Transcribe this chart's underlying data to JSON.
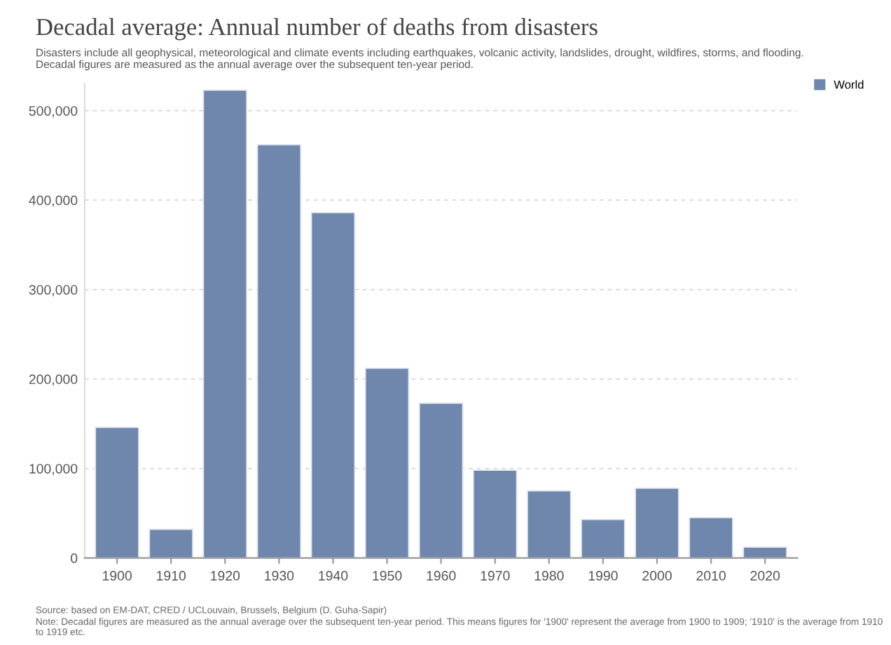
{
  "chart_data": {
    "type": "bar",
    "title": "Decadal average: Annual number of deaths from disasters",
    "subtitle": "Disasters include all geophysical, meteorological and climate events including earthquakes, volcanic activity, landslides, drought, wildfires, storms, and flooding.\nDecadal figures are measured as the annual average over the subsequent ten-year period.",
    "categories": [
      "1900",
      "1910",
      "1920",
      "1930",
      "1940",
      "1950",
      "1960",
      "1970",
      "1980",
      "1990",
      "2000",
      "2010",
      "2020"
    ],
    "series": [
      {
        "name": "World",
        "color": "#6f86ad",
        "values": [
          146000,
          32000,
          523000,
          462000,
          386000,
          212000,
          173000,
          98000,
          75000,
          43000,
          78000,
          45000,
          12000
        ]
      }
    ],
    "ylim": [
      0,
      530000
    ],
    "yticks": [
      {
        "value": 0,
        "label": "0"
      },
      {
        "value": 100000,
        "label": "100,000"
      },
      {
        "value": 200000,
        "label": "200,000"
      },
      {
        "value": 300000,
        "label": "300,000"
      },
      {
        "value": 400000,
        "label": "400,000"
      },
      {
        "value": 500000,
        "label": "500,000"
      }
    ],
    "grid": "y",
    "legend": "top right",
    "annotations": [
      "Source: based on EM-DAT, CRED / UCLouvain, Brussels, Belgium (D. Guha-Sapir)",
      "Note: Decadal figures are measured as the annual average over the subsequent ten-year period. This means figures for '1900' represent the average from 1900 to 1909; '1910' is the average from 1910 to 1919 etc."
    ]
  }
}
